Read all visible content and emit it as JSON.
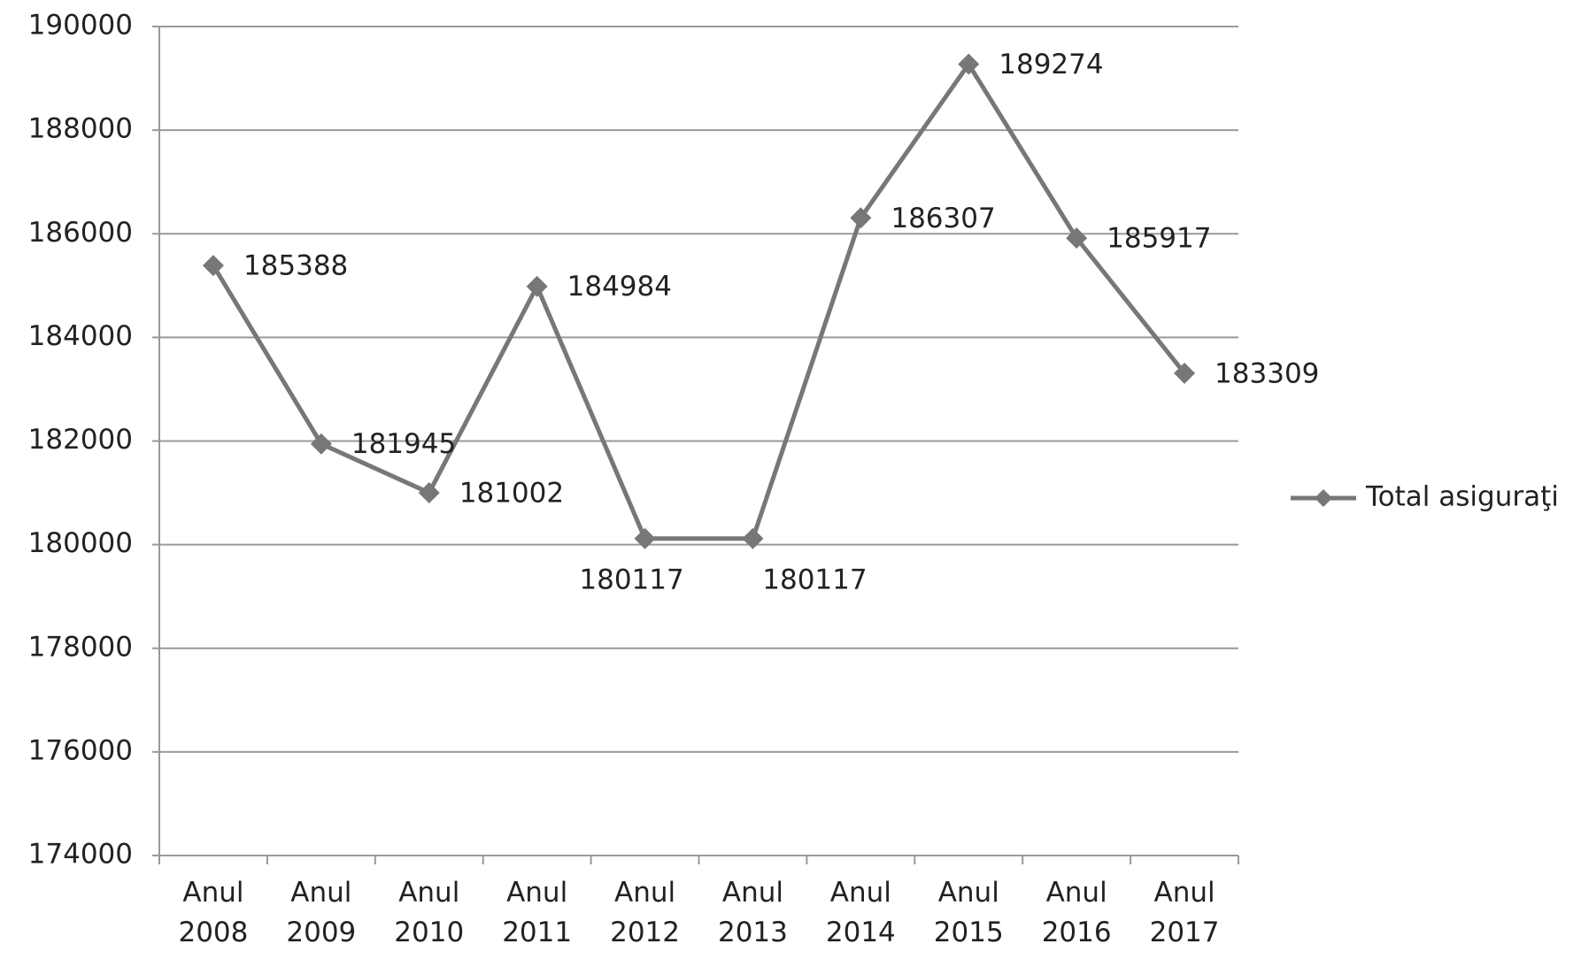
{
  "chart_data": {
    "type": "line",
    "categories": [
      "Anul 2008",
      "Anul 2009",
      "Anul 2010",
      "Anul 2011",
      "Anul 2012",
      "Anul 2013",
      "Anul 2014",
      "Anul 2015",
      "Anul 2016",
      "Anul 2017"
    ],
    "series": [
      {
        "name": "Total asiguraţi",
        "color": "#777777",
        "values": [
          185388,
          181945,
          181002,
          184984,
          180117,
          180117,
          186307,
          189274,
          185917,
          183309
        ]
      }
    ],
    "ylim": [
      174000,
      190000
    ],
    "yticks": [
      174000,
      176000,
      178000,
      180000,
      182000,
      184000,
      186000,
      188000,
      190000
    ],
    "grid": true,
    "legend": "right"
  }
}
